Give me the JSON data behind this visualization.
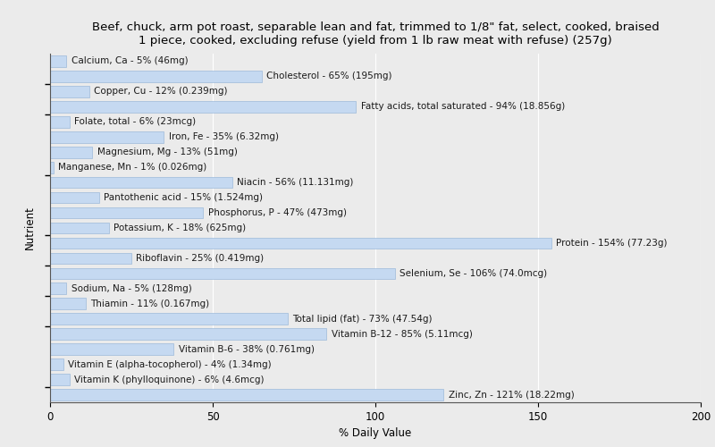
{
  "title": "Beef, chuck, arm pot roast, separable lean and fat, trimmed to 1/8\" fat, select, cooked, braised\n1 piece, cooked, excluding refuse (yield from 1 lb raw meat with refuse) (257g)",
  "xlabel": "% Daily Value",
  "ylabel": "Nutrient",
  "nutrients": [
    {
      "label": "Calcium, Ca - 5% (46mg)",
      "value": 5
    },
    {
      "label": "Cholesterol - 65% (195mg)",
      "value": 65
    },
    {
      "label": "Copper, Cu - 12% (0.239mg)",
      "value": 12
    },
    {
      "label": "Fatty acids, total saturated - 94% (18.856g)",
      "value": 94
    },
    {
      "label": "Folate, total - 6% (23mcg)",
      "value": 6
    },
    {
      "label": "Iron, Fe - 35% (6.32mg)",
      "value": 35
    },
    {
      "label": "Magnesium, Mg - 13% (51mg)",
      "value": 13
    },
    {
      "label": "Manganese, Mn - 1% (0.026mg)",
      "value": 1
    },
    {
      "label": "Niacin - 56% (11.131mg)",
      "value": 56
    },
    {
      "label": "Pantothenic acid - 15% (1.524mg)",
      "value": 15
    },
    {
      "label": "Phosphorus, P - 47% (473mg)",
      "value": 47
    },
    {
      "label": "Potassium, K - 18% (625mg)",
      "value": 18
    },
    {
      "label": "Protein - 154% (77.23g)",
      "value": 154
    },
    {
      "label": "Riboflavin - 25% (0.419mg)",
      "value": 25
    },
    {
      "label": "Selenium, Se - 106% (74.0mcg)",
      "value": 106
    },
    {
      "label": "Sodium, Na - 5% (128mg)",
      "value": 5
    },
    {
      "label": "Thiamin - 11% (0.167mg)",
      "value": 11
    },
    {
      "label": "Total lipid (fat) - 73% (47.54g)",
      "value": 73
    },
    {
      "label": "Vitamin B-12 - 85% (5.11mcg)",
      "value": 85
    },
    {
      "label": "Vitamin B-6 - 38% (0.761mg)",
      "value": 38
    },
    {
      "label": "Vitamin E (alpha-tocopherol) - 4% (1.34mg)",
      "value": 4
    },
    {
      "label": "Vitamin K (phylloquinone) - 6% (4.6mcg)",
      "value": 6
    },
    {
      "label": "Zinc, Zn - 121% (18.22mg)",
      "value": 121
    }
  ],
  "bar_color": "#c5d9f1",
  "bar_edge_color": "#8eafd4",
  "background_color": "#ebebeb",
  "plot_bg_color": "#ebebeb",
  "xlim": [
    0,
    200
  ],
  "xticks": [
    0,
    50,
    100,
    150,
    200
  ],
  "title_fontsize": 9.5,
  "label_fontsize": 7.5,
  "tick_fontsize": 8.5,
  "ylabel_fontsize": 8.5,
  "xlabel_fontsize": 8.5
}
